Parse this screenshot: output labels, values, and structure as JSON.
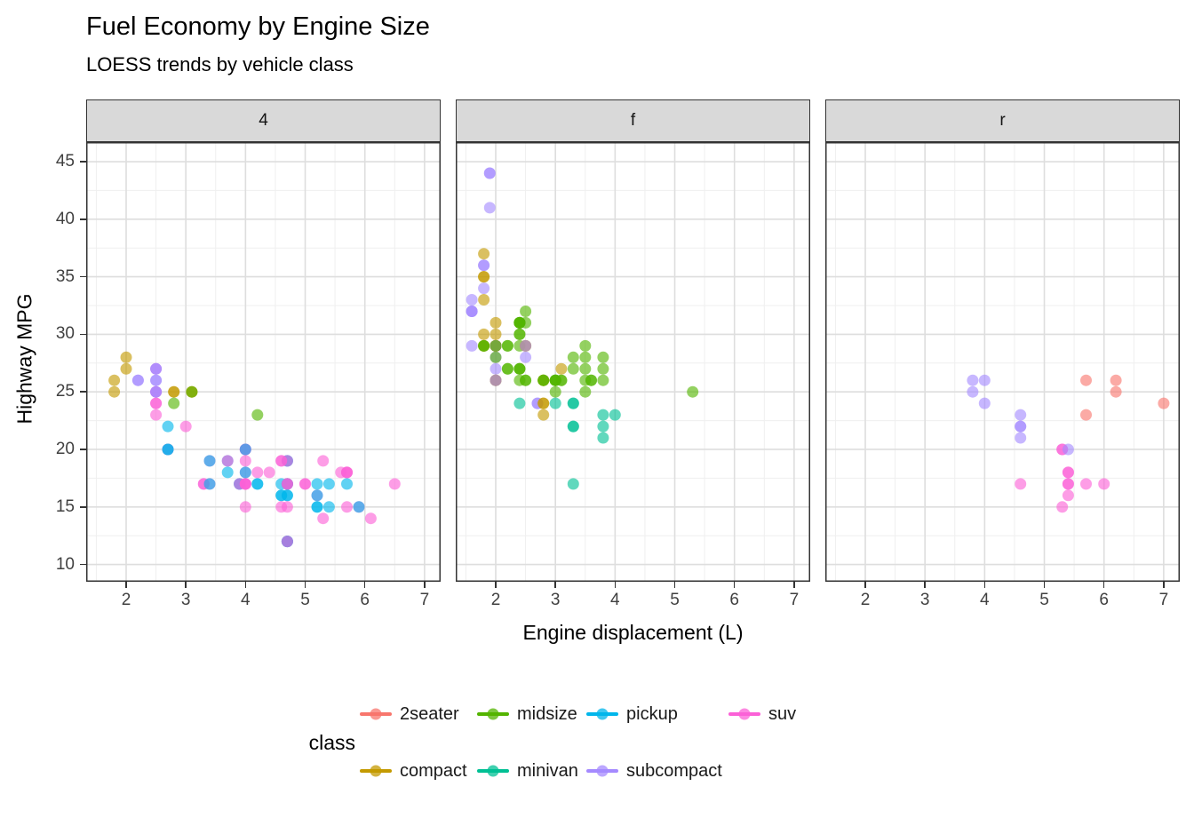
{
  "header": {
    "title": "Fuel Economy by Engine Size",
    "subtitle": "LOESS trends by vehicle class"
  },
  "axes": {
    "x_title": "Engine displacement (L)",
    "y_title": "Highway MPG",
    "x_ticks": [
      2,
      3,
      4,
      5,
      6,
      7
    ],
    "y_ticks": [
      45,
      40,
      35,
      30,
      25,
      20,
      15,
      10
    ]
  },
  "legend": {
    "title": "class",
    "entries": [
      {
        "label": "2seater",
        "color": "#F8766D"
      },
      {
        "label": "compact",
        "color": "#C49A00"
      },
      {
        "label": "midsize",
        "color": "#53B400"
      },
      {
        "label": "minivan",
        "color": "#00C094"
      },
      {
        "label": "pickup",
        "color": "#00B6EB"
      },
      {
        "label": "subcompact",
        "color": "#A58AFF"
      },
      {
        "label": "suv",
        "color": "#FB61D7"
      }
    ]
  },
  "chart_data": {
    "type": "scatter",
    "title": "Fuel Economy by Engine Size",
    "subtitle": "LOESS trends by vehicle class",
    "xlabel": "Engine displacement (L)",
    "ylabel": "Highway MPG",
    "facet_variable": "drv",
    "facets": [
      "4",
      "f",
      "r"
    ],
    "xlim": [
      1.33,
      7.27
    ],
    "ylim": [
      8.5,
      46.7
    ],
    "x_major": [
      2,
      3,
      4,
      5,
      6,
      7
    ],
    "x_minor": [
      1.5,
      2.5,
      3.5,
      4.5,
      5.5,
      6.5
    ],
    "y_major": [
      10,
      15,
      20,
      25,
      30,
      35,
      40,
      45
    ],
    "y_minor": [
      12.5,
      17.5,
      22.5,
      27.5,
      32.5,
      37.5,
      42.5
    ],
    "grid": "on",
    "legend_position": "bottom",
    "smoother": {
      "method": "loess",
      "span": 0.75,
      "degree": 2,
      "se": false
    },
    "point_alpha": 0.62,
    "series_colors": {
      "2seater": "#F8766D",
      "compact": "#C49A00",
      "midsize": "#53B400",
      "minivan": "#00C094",
      "pickup": "#00B6EB",
      "subcompact": "#A58AFF",
      "suv": "#FB61D7"
    },
    "points": [
      [
        1.8,
        29,
        "compact",
        "f"
      ],
      [
        1.8,
        29,
        "compact",
        "f"
      ],
      [
        2.0,
        31,
        "compact",
        "f"
      ],
      [
        2.0,
        30,
        "compact",
        "f"
      ],
      [
        2.8,
        26,
        "compact",
        "f"
      ],
      [
        2.8,
        26,
        "compact",
        "f"
      ],
      [
        3.1,
        27,
        "compact",
        "f"
      ],
      [
        1.8,
        26,
        "compact",
        "4"
      ],
      [
        1.8,
        25,
        "compact",
        "4"
      ],
      [
        2.0,
        28,
        "compact",
        "4"
      ],
      [
        2.0,
        27,
        "compact",
        "4"
      ],
      [
        2.8,
        25,
        "compact",
        "4"
      ],
      [
        2.8,
        25,
        "compact",
        "4"
      ],
      [
        3.1,
        25,
        "compact",
        "4"
      ],
      [
        3.1,
        25,
        "compact",
        "4"
      ],
      [
        2.8,
        24,
        "midsize",
        "4"
      ],
      [
        3.1,
        25,
        "midsize",
        "4"
      ],
      [
        4.2,
        23,
        "midsize",
        "4"
      ],
      [
        5.3,
        20,
        "suv",
        "r"
      ],
      [
        5.3,
        15,
        "suv",
        "r"
      ],
      [
        5.3,
        20,
        "suv",
        "r"
      ],
      [
        5.7,
        17,
        "suv",
        "r"
      ],
      [
        6.0,
        17,
        "suv",
        "r"
      ],
      [
        5.7,
        26,
        "2seater",
        "r"
      ],
      [
        5.7,
        23,
        "2seater",
        "r"
      ],
      [
        6.2,
        26,
        "2seater",
        "r"
      ],
      [
        6.2,
        25,
        "2seater",
        "r"
      ],
      [
        7.0,
        24,
        "2seater",
        "r"
      ],
      [
        5.3,
        19,
        "suv",
        "4"
      ],
      [
        5.3,
        14,
        "suv",
        "4"
      ],
      [
        5.7,
        15,
        "suv",
        "4"
      ],
      [
        6.5,
        17,
        "suv",
        "4"
      ],
      [
        2.4,
        27,
        "midsize",
        "f"
      ],
      [
        2.4,
        30,
        "midsize",
        "f"
      ],
      [
        3.1,
        26,
        "midsize",
        "f"
      ],
      [
        3.5,
        29,
        "midsize",
        "f"
      ],
      [
        3.6,
        26,
        "midsize",
        "f"
      ],
      [
        2.4,
        24,
        "minivan",
        "f"
      ],
      [
        3.0,
        24,
        "minivan",
        "f"
      ],
      [
        3.3,
        22,
        "minivan",
        "f"
      ],
      [
        3.3,
        22,
        "minivan",
        "f"
      ],
      [
        3.3,
        24,
        "minivan",
        "f"
      ],
      [
        3.3,
        24,
        "minivan",
        "f"
      ],
      [
        3.3,
        17,
        "minivan",
        "f"
      ],
      [
        3.8,
        22,
        "minivan",
        "f"
      ],
      [
        3.8,
        21,
        "minivan",
        "f"
      ],
      [
        3.8,
        23,
        "minivan",
        "f"
      ],
      [
        4.0,
        23,
        "minivan",
        "f"
      ],
      [
        3.7,
        19,
        "pickup",
        "4"
      ],
      [
        3.7,
        18,
        "pickup",
        "4"
      ],
      [
        3.9,
        17,
        "pickup",
        "4"
      ],
      [
        3.9,
        17,
        "pickup",
        "4"
      ],
      [
        4.7,
        19,
        "pickup",
        "4"
      ],
      [
        4.7,
        19,
        "pickup",
        "4"
      ],
      [
        4.7,
        12,
        "pickup",
        "4"
      ],
      [
        5.2,
        17,
        "pickup",
        "4"
      ],
      [
        5.2,
        15,
        "pickup",
        "4"
      ],
      [
        3.9,
        17,
        "suv",
        "4"
      ],
      [
        4.7,
        17,
        "suv",
        "4"
      ],
      [
        4.7,
        12,
        "suv",
        "4"
      ],
      [
        4.7,
        17,
        "suv",
        "4"
      ],
      [
        5.2,
        16,
        "suv",
        "4"
      ],
      [
        5.7,
        18,
        "suv",
        "4"
      ],
      [
        5.9,
        15,
        "suv",
        "4"
      ],
      [
        4.7,
        16,
        "pickup",
        "4"
      ],
      [
        4.7,
        12,
        "pickup",
        "4"
      ],
      [
        4.7,
        17,
        "pickup",
        "4"
      ],
      [
        4.7,
        17,
        "pickup",
        "4"
      ],
      [
        4.7,
        16,
        "pickup",
        "4"
      ],
      [
        4.7,
        12,
        "pickup",
        "4"
      ],
      [
        5.2,
        15,
        "pickup",
        "4"
      ],
      [
        5.2,
        16,
        "pickup",
        "4"
      ],
      [
        5.7,
        17,
        "pickup",
        "4"
      ],
      [
        5.9,
        15,
        "pickup",
        "4"
      ],
      [
        4.6,
        17,
        "suv",
        "r"
      ],
      [
        5.4,
        17,
        "suv",
        "r"
      ],
      [
        5.4,
        18,
        "suv",
        "r"
      ],
      [
        4.0,
        17,
        "suv",
        "4"
      ],
      [
        4.0,
        17,
        "suv",
        "4"
      ],
      [
        4.0,
        17,
        "suv",
        "4"
      ],
      [
        4.0,
        18,
        "suv",
        "4"
      ],
      [
        4.6,
        19,
        "suv",
        "4"
      ],
      [
        5.0,
        17,
        "suv",
        "4"
      ],
      [
        4.2,
        17,
        "pickup",
        "4"
      ],
      [
        4.2,
        17,
        "pickup",
        "4"
      ],
      [
        4.6,
        16,
        "pickup",
        "4"
      ],
      [
        4.6,
        16,
        "pickup",
        "4"
      ],
      [
        4.6,
        17,
        "pickup",
        "4"
      ],
      [
        5.4,
        15,
        "pickup",
        "4"
      ],
      [
        5.4,
        17,
        "pickup",
        "4"
      ],
      [
        3.8,
        26,
        "subcompact",
        "r"
      ],
      [
        3.8,
        25,
        "subcompact",
        "r"
      ],
      [
        4.0,
        26,
        "subcompact",
        "r"
      ],
      [
        4.0,
        24,
        "subcompact",
        "r"
      ],
      [
        4.6,
        21,
        "subcompact",
        "r"
      ],
      [
        4.6,
        22,
        "subcompact",
        "r"
      ],
      [
        4.6,
        23,
        "subcompact",
        "r"
      ],
      [
        4.6,
        22,
        "subcompact",
        "r"
      ],
      [
        5.4,
        20,
        "subcompact",
        "r"
      ],
      [
        1.6,
        33,
        "subcompact",
        "f"
      ],
      [
        1.6,
        32,
        "subcompact",
        "f"
      ],
      [
        1.6,
        32,
        "subcompact",
        "f"
      ],
      [
        1.6,
        29,
        "subcompact",
        "f"
      ],
      [
        1.6,
        32,
        "subcompact",
        "f"
      ],
      [
        1.8,
        34,
        "subcompact",
        "f"
      ],
      [
        1.8,
        36,
        "subcompact",
        "f"
      ],
      [
        1.8,
        36,
        "subcompact",
        "f"
      ],
      [
        2.0,
        29,
        "subcompact",
        "f"
      ],
      [
        2.4,
        26,
        "midsize",
        "f"
      ],
      [
        2.4,
        27,
        "midsize",
        "f"
      ],
      [
        2.4,
        30,
        "midsize",
        "f"
      ],
      [
        2.4,
        31,
        "midsize",
        "f"
      ],
      [
        2.5,
        26,
        "midsize",
        "f"
      ],
      [
        2.5,
        26,
        "midsize",
        "f"
      ],
      [
        3.3,
        28,
        "midsize",
        "f"
      ],
      [
        2.0,
        26,
        "subcompact",
        "f"
      ],
      [
        2.0,
        29,
        "subcompact",
        "f"
      ],
      [
        2.0,
        28,
        "subcompact",
        "f"
      ],
      [
        2.0,
        27,
        "subcompact",
        "f"
      ],
      [
        2.7,
        24,
        "subcompact",
        "f"
      ],
      [
        2.7,
        24,
        "subcompact",
        "f"
      ],
      [
        3.0,
        22,
        "suv",
        "4"
      ],
      [
        3.7,
        19,
        "suv",
        "4"
      ],
      [
        4.0,
        20,
        "suv",
        "4"
      ],
      [
        4.7,
        17,
        "suv",
        "4"
      ],
      [
        4.7,
        12,
        "suv",
        "4"
      ],
      [
        4.7,
        19,
        "suv",
        "4"
      ],
      [
        5.7,
        18,
        "suv",
        "4"
      ],
      [
        6.1,
        14,
        "suv",
        "4"
      ],
      [
        4.0,
        15,
        "suv",
        "4"
      ],
      [
        4.2,
        18,
        "suv",
        "4"
      ],
      [
        4.4,
        18,
        "suv",
        "4"
      ],
      [
        4.6,
        15,
        "suv",
        "4"
      ],
      [
        5.4,
        17,
        "suv",
        "r"
      ],
      [
        5.4,
        16,
        "suv",
        "r"
      ],
      [
        5.4,
        18,
        "suv",
        "r"
      ],
      [
        4.0,
        17,
        "suv",
        "4"
      ],
      [
        4.0,
        19,
        "suv",
        "4"
      ],
      [
        4.6,
        19,
        "suv",
        "4"
      ],
      [
        5.0,
        17,
        "suv",
        "4"
      ],
      [
        2.4,
        29,
        "midsize",
        "f"
      ],
      [
        2.4,
        27,
        "midsize",
        "f"
      ],
      [
        2.5,
        31,
        "midsize",
        "f"
      ],
      [
        2.5,
        32,
        "midsize",
        "f"
      ],
      [
        3.5,
        27,
        "midsize",
        "f"
      ],
      [
        3.5,
        26,
        "midsize",
        "f"
      ],
      [
        3.0,
        26,
        "midsize",
        "f"
      ],
      [
        3.0,
        25,
        "midsize",
        "f"
      ],
      [
        3.5,
        25,
        "midsize",
        "f"
      ],
      [
        3.3,
        17,
        "suv",
        "4"
      ],
      [
        3.3,
        17,
        "suv",
        "4"
      ],
      [
        4.0,
        20,
        "suv",
        "4"
      ],
      [
        5.6,
        18,
        "suv",
        "4"
      ],
      [
        3.1,
        26,
        "midsize",
        "f"
      ],
      [
        3.8,
        26,
        "midsize",
        "f"
      ],
      [
        3.8,
        27,
        "midsize",
        "f"
      ],
      [
        3.8,
        28,
        "midsize",
        "f"
      ],
      [
        5.3,
        25,
        "midsize",
        "f"
      ],
      [
        2.5,
        25,
        "suv",
        "4"
      ],
      [
        2.5,
        24,
        "suv",
        "4"
      ],
      [
        2.5,
        27,
        "suv",
        "4"
      ],
      [
        2.5,
        25,
        "suv",
        "4"
      ],
      [
        2.5,
        23,
        "suv",
        "4"
      ],
      [
        2.5,
        24,
        "suv",
        "4"
      ],
      [
        2.2,
        26,
        "subcompact",
        "4"
      ],
      [
        2.2,
        26,
        "subcompact",
        "4"
      ],
      [
        2.5,
        26,
        "subcompact",
        "4"
      ],
      [
        2.5,
        26,
        "subcompact",
        "4"
      ],
      [
        2.5,
        25,
        "subcompact",
        "4"
      ],
      [
        2.5,
        27,
        "subcompact",
        "4"
      ],
      [
        2.5,
        25,
        "subcompact",
        "4"
      ],
      [
        2.5,
        27,
        "subcompact",
        "4"
      ],
      [
        2.7,
        20,
        "suv",
        "4"
      ],
      [
        2.7,
        20,
        "suv",
        "4"
      ],
      [
        3.4,
        19,
        "suv",
        "4"
      ],
      [
        3.4,
        17,
        "suv",
        "4"
      ],
      [
        4.0,
        20,
        "suv",
        "4"
      ],
      [
        4.7,
        17,
        "suv",
        "4"
      ],
      [
        2.2,
        27,
        "midsize",
        "f"
      ],
      [
        2.2,
        29,
        "midsize",
        "f"
      ],
      [
        2.4,
        31,
        "midsize",
        "f"
      ],
      [
        2.4,
        31,
        "midsize",
        "f"
      ],
      [
        3.0,
        26,
        "midsize",
        "f"
      ],
      [
        3.0,
        26,
        "midsize",
        "f"
      ],
      [
        3.5,
        28,
        "midsize",
        "f"
      ],
      [
        2.2,
        27,
        "midsize",
        "f"
      ],
      [
        2.2,
        29,
        "midsize",
        "f"
      ],
      [
        2.4,
        31,
        "midsize",
        "f"
      ],
      [
        2.4,
        31,
        "midsize",
        "f"
      ],
      [
        3.0,
        26,
        "midsize",
        "f"
      ],
      [
        3.3,
        27,
        "midsize",
        "f"
      ],
      [
        1.8,
        30,
        "compact",
        "f"
      ],
      [
        1.8,
        33,
        "compact",
        "f"
      ],
      [
        1.8,
        35,
        "compact",
        "f"
      ],
      [
        1.8,
        37,
        "compact",
        "f"
      ],
      [
        1.8,
        35,
        "compact",
        "f"
      ],
      [
        4.7,
        15,
        "suv",
        "4"
      ],
      [
        5.7,
        18,
        "suv",
        "4"
      ],
      [
        2.7,
        20,
        "pickup",
        "4"
      ],
      [
        2.7,
        20,
        "pickup",
        "4"
      ],
      [
        2.7,
        22,
        "pickup",
        "4"
      ],
      [
        3.4,
        17,
        "pickup",
        "4"
      ],
      [
        3.4,
        19,
        "pickup",
        "4"
      ],
      [
        4.0,
        18,
        "pickup",
        "4"
      ],
      [
        4.0,
        20,
        "pickup",
        "4"
      ],
      [
        2.0,
        29,
        "compact",
        "f"
      ],
      [
        2.0,
        26,
        "compact",
        "f"
      ],
      [
        2.0,
        29,
        "compact",
        "f"
      ],
      [
        2.0,
        29,
        "compact",
        "f"
      ],
      [
        2.8,
        24,
        "compact",
        "f"
      ],
      [
        1.9,
        44,
        "subcompact",
        "f"
      ],
      [
        2.0,
        29,
        "compact",
        "f"
      ],
      [
        2.0,
        26,
        "compact",
        "f"
      ],
      [
        2.0,
        29,
        "compact",
        "f"
      ],
      [
        2.0,
        29,
        "compact",
        "f"
      ],
      [
        2.5,
        29,
        "compact",
        "f"
      ],
      [
        2.5,
        29,
        "compact",
        "f"
      ],
      [
        2.8,
        23,
        "compact",
        "f"
      ],
      [
        2.8,
        24,
        "compact",
        "f"
      ],
      [
        1.9,
        44,
        "subcompact",
        "f"
      ],
      [
        1.9,
        41,
        "subcompact",
        "f"
      ],
      [
        2.0,
        29,
        "subcompact",
        "f"
      ],
      [
        2.0,
        26,
        "subcompact",
        "f"
      ],
      [
        2.5,
        28,
        "subcompact",
        "f"
      ],
      [
        2.5,
        29,
        "subcompact",
        "f"
      ],
      [
        1.8,
        29,
        "midsize",
        "f"
      ],
      [
        1.8,
        29,
        "midsize",
        "f"
      ],
      [
        2.0,
        28,
        "midsize",
        "f"
      ],
      [
        2.0,
        29,
        "midsize",
        "f"
      ],
      [
        2.8,
        26,
        "midsize",
        "f"
      ],
      [
        2.8,
        26,
        "midsize",
        "f"
      ],
      [
        3.6,
        26,
        "midsize",
        "f"
      ]
    ]
  }
}
